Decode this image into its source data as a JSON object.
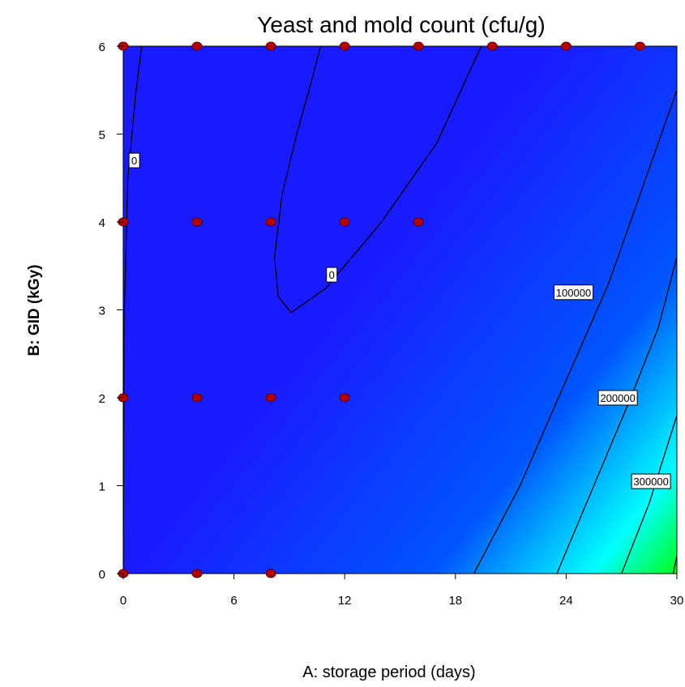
{
  "chart_data": {
    "type": "contour",
    "title": "Yeast and mold count (cfu/g)",
    "xlabel": "A: storage period  (days)",
    "ylabel": "B: GID (kGy)",
    "xlim": [
      0,
      30
    ],
    "ylim": [
      0,
      6
    ],
    "xticks": [
      "0",
      "6",
      "12",
      "18",
      "24",
      "30"
    ],
    "yticks": [
      "0",
      "1",
      "2",
      "3",
      "4",
      "5",
      "6"
    ],
    "colormap": [
      "#1a1aff",
      "#0055ff",
      "#00ffff",
      "#00ff00",
      "#ffff00",
      "#ff0000"
    ],
    "design_points": [
      {
        "x": 0,
        "y": 6
      },
      {
        "x": 4,
        "y": 6
      },
      {
        "x": 8,
        "y": 6
      },
      {
        "x": 12,
        "y": 6
      },
      {
        "x": 16,
        "y": 6
      },
      {
        "x": 20,
        "y": 6
      },
      {
        "x": 24,
        "y": 6
      },
      {
        "x": 28,
        "y": 6
      },
      {
        "x": 0,
        "y": 4
      },
      {
        "x": 4,
        "y": 4
      },
      {
        "x": 8,
        "y": 4
      },
      {
        "x": 12,
        "y": 4
      },
      {
        "x": 16,
        "y": 4
      },
      {
        "x": 0,
        "y": 2
      },
      {
        "x": 4,
        "y": 2
      },
      {
        "x": 8,
        "y": 2
      },
      {
        "x": 12,
        "y": 2
      },
      {
        "x": 0,
        "y": 0
      },
      {
        "x": 4,
        "y": 0
      },
      {
        "x": 8,
        "y": 0
      }
    ],
    "contour_labels": [
      {
        "text": "0",
        "x": 0.6,
        "y": 4.7
      },
      {
        "text": "0",
        "x": 11.3,
        "y": 3.4
      },
      {
        "text": "100000",
        "x": 24.4,
        "y": 3.2
      },
      {
        "text": "200000",
        "x": 26.8,
        "y": 2.0
      },
      {
        "text": "300000",
        "x": 28.6,
        "y": 1.05
      }
    ]
  }
}
